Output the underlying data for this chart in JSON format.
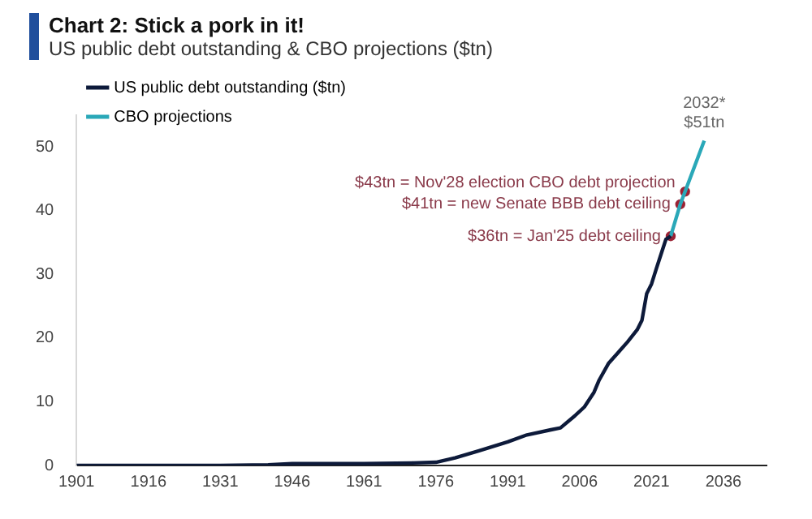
{
  "chart_data": {
    "type": "line",
    "title": "Chart 2: Stick a pork in it!",
    "subtitle": "US public debt outstanding & CBO projections ($tn)",
    "series": [
      {
        "name": "US public debt outstanding ($tn)",
        "color": "#0d1a3a",
        "x": [
          1901,
          1916,
          1931,
          1941,
          1946,
          1961,
          1971,
          1976,
          1980,
          1985,
          1991,
          1995,
          2000,
          2002,
          2005,
          2007,
          2009,
          2010,
          2012,
          2014,
          2016,
          2018,
          2019,
          2020,
          2021,
          2022,
          2023,
          2024,
          2025
        ],
        "values": [
          0,
          0,
          0,
          0.1,
          0.3,
          0.3,
          0.4,
          0.5,
          1.2,
          2.3,
          3.7,
          4.8,
          5.6,
          5.9,
          7.8,
          9.2,
          11.5,
          13.3,
          16,
          17.7,
          19.4,
          21.3,
          22.8,
          27,
          28.5,
          30.9,
          33.2,
          35.5,
          36
        ]
      },
      {
        "name": "CBO projections",
        "color": "#2aa8b8",
        "x": [
          2025,
          2027,
          2028,
          2032
        ],
        "values": [
          36,
          41,
          43,
          51
        ]
      },
      {
        "type": "scatter",
        "marker": "circle",
        "color": "#9b2335",
        "x": [
          2025,
          2027,
          2028
        ],
        "values": [
          36,
          41,
          43
        ]
      }
    ],
    "xlim": [
      1901,
      2045
    ],
    "xticks": [
      1901,
      1916,
      1931,
      1946,
      1961,
      1976,
      1991,
      2006,
      2021,
      2036
    ],
    "ylim": [
      0,
      55
    ],
    "yticks": [
      0,
      10,
      20,
      30,
      40,
      50
    ],
    "grid": false,
    "legend": "top left",
    "marker": "none",
    "line_style": "solid",
    "annotations": [
      {
        "text": "$36tn = Jan'25 debt ceiling",
        "x": 2025,
        "y": 36
      },
      {
        "text": "$41tn = new Senate BBB debt ceiling",
        "x": 2027,
        "y": 41
      },
      {
        "text": "$43tn = Nov'28 election CBO debt projection",
        "x": 2028,
        "y": 43
      },
      {
        "text": "2032*\n$51tn",
        "x": 2032,
        "y": 51
      }
    ]
  }
}
